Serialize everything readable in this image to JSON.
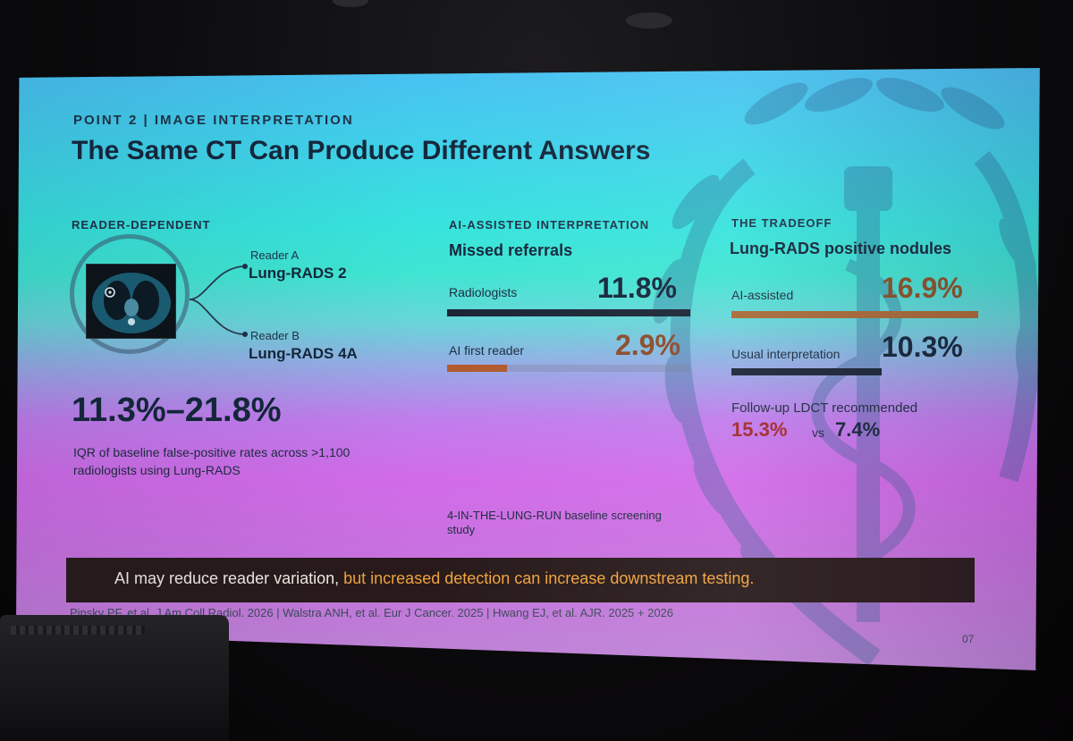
{
  "slide": {
    "eyebrow": "POINT 2 | IMAGE INTERPRETATION",
    "title": "The Same CT Can Produce Different Answers",
    "reader_dependent": {
      "heading": "READER-DEPENDENT",
      "reader_a_label": "Reader A",
      "reader_a_value": "Lung-RADS 2",
      "reader_b_label": "Reader B",
      "reader_b_value": "Lung-RADS 4A",
      "range": "11.3%–21.8%",
      "caption_line1": "IQR of baseline false-positive rates across >1,100",
      "caption_line2": "radiologists using Lung-RADS"
    },
    "ai_assisted": {
      "heading": "AI-ASSISTED INTERPRETATION",
      "subheading": "Missed referrals",
      "metrics": [
        {
          "label": "Radiologists",
          "value": "11.8%",
          "fraction": 1.0,
          "color": "#1a2536"
        },
        {
          "label": "AI first reader",
          "value": "2.9%",
          "fraction": 0.246,
          "color": "#b15a2e"
        }
      ],
      "study_line1": "4-IN-THE-LUNG-RUN baseline screening",
      "study_line2": "study"
    },
    "tradeoff": {
      "heading": "THE TRADEOFF",
      "subheading": "Lung-RADS positive nodules",
      "metrics": [
        {
          "label": "AI-assisted",
          "value": "16.9%",
          "fraction": 1.0,
          "color": "#a86a37"
        },
        {
          "label": "Usual interpretation",
          "value": "10.3%",
          "fraction": 0.61,
          "color": "#1a2536"
        }
      ],
      "followup_label": "Follow-up LDCT recommended",
      "followup_ai": "15.3%",
      "followup_vs": "vs",
      "followup_usual": "7.4%"
    },
    "banner_start": "AI may reduce reader variation,",
    "banner_accent": "but increased detection can increase downstream testing.",
    "references": "Pinsky PF, et al. J Am Coll Radiol. 2026 | Walstra ANH, et al. Eur J Cancer. 2025 | Hwang EJ, et al. AJR. 2025 + 2026",
    "page_number": "07"
  },
  "colors": {
    "text_dark": "#14263a",
    "accent_orange": "#f0a33f",
    "ai_red": "#a3282b",
    "banner_bg": "#281a1a"
  }
}
